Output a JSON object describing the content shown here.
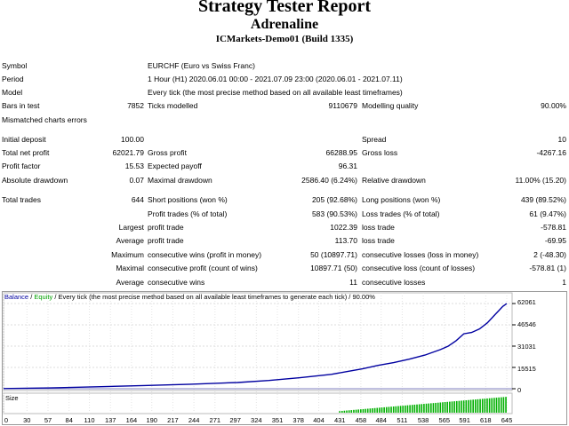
{
  "header": {
    "title": "Strategy Tester Report",
    "expert": "Adrenaline",
    "server": "ICMarkets-Demo01 (Build 1335)"
  },
  "info": {
    "symbol_label": "Symbol",
    "symbol": "EURCHF (Euro vs Swiss Franc)",
    "period_label": "Period",
    "period": "1 Hour (H1) 2020.06.01 00:00 - 2021.07.09 23:00 (2020.06.01 - 2021.07.11)",
    "model_label": "Model",
    "model": "Every tick (the most precise method based on all available least timeframes)",
    "bars_label": "Bars in test",
    "bars": "7852",
    "ticks_label": "Ticks modelled",
    "ticks": "9110679",
    "quality_label": "Modelling quality",
    "quality": "90.00%",
    "mismatch_label": "Mismatched charts errors"
  },
  "stats": {
    "deposit_label": "Initial deposit",
    "deposit": "100.00",
    "spread_label": "Spread",
    "spread": "10",
    "netprofit_label": "Total net profit",
    "netprofit": "62021.79",
    "grossprofit_label": "Gross profit",
    "grossprofit": "66288.95",
    "grossloss_label": "Gross loss",
    "grossloss": "-4267.16",
    "pf_label": "Profit factor",
    "pf": "15.53",
    "payoff_label": "Expected payoff",
    "payoff": "96.31",
    "absdd_label": "Absolute drawdown",
    "absdd": "0.07",
    "maxdd_label": "Maximal drawdown",
    "maxdd": "2586.40 (6.24%)",
    "reldd_label": "Relative drawdown",
    "reldd": "11.00% (15.20)"
  },
  "trades": {
    "total_label": "Total trades",
    "total": "644",
    "short_label": "Short positions (won %)",
    "short": "205 (92.68%)",
    "long_label": "Long positions (won %)",
    "long": "439 (89.52%)",
    "profit_label": "Profit trades (% of total)",
    "profit": "583 (90.53%)",
    "loss_label": "Loss trades (% of total)",
    "loss": "61 (9.47%)",
    "largest_label": "Largest",
    "largest_profit_label": "profit trade",
    "largest_profit": "1022.39",
    "largest_loss_label": "loss trade",
    "largest_loss": "-578.81",
    "average_label": "Average",
    "average_profit_label": "profit trade",
    "average_profit": "113.70",
    "average_loss_label": "loss trade",
    "average_loss": "-69.95",
    "maximum_label": "Maximum",
    "max_wins_label": "consecutive wins (profit in money)",
    "max_wins": "50 (10897.71)",
    "max_losses_label": "consecutive losses (loss in money)",
    "max_losses": "2 (-48.30)",
    "maximal_label": "Maximal",
    "maximal_profit_label": "consecutive profit (count of wins)",
    "maximal_profit": "10897.71 (50)",
    "maximal_loss_label": "consecutive loss (count of losses)",
    "maximal_loss": "-578.81 (1)",
    "avg_cons_label": "Average",
    "avg_wins_label": "consecutive wins",
    "avg_wins": "11",
    "avg_losses_label": "consecutive losses",
    "avg_losses": "1"
  },
  "chart_data": {
    "type": "line",
    "legend": [
      "Balance",
      "Equity"
    ],
    "caption_sep": " / ",
    "caption": " / Every tick (the most precise method based on all available least timeframes to generate each tick) / 90.00%",
    "colors": {
      "balance": "#0000a0",
      "equity": "#00a000",
      "size": "#00b000"
    },
    "x_ticks": [
      "0",
      "30",
      "57",
      "84",
      "110",
      "137",
      "164",
      "190",
      "217",
      "244",
      "271",
      "297",
      "324",
      "351",
      "378",
      "404",
      "431",
      "458",
      "484",
      "511",
      "538",
      "565",
      "591",
      "618",
      "645"
    ],
    "y_ticks": [
      "62061",
      "46546",
      "31031",
      "15515",
      "0"
    ],
    "ylim": [
      0,
      62061
    ],
    "xlim": [
      0,
      645
    ],
    "size_label": "Size",
    "series": [
      {
        "name": "Balance",
        "x": [
          0,
          60,
          120,
          180,
          240,
          300,
          340,
          380,
          420,
          440,
          460,
          480,
          500,
          520,
          540,
          560,
          570,
          580,
          590,
          600,
          610,
          620,
          630,
          640,
          645
        ],
        "y": [
          100,
          600,
          1400,
          2300,
          3300,
          4500,
          6000,
          8000,
          10500,
          12500,
          14500,
          17000,
          19000,
          21500,
          24500,
          28500,
          31000,
          35000,
          40000,
          41000,
          43500,
          48000,
          54000,
          60000,
          62021
        ]
      }
    ],
    "size_values": {
      "start": 430,
      "end": 645,
      "min": 1,
      "max": 10
    }
  }
}
